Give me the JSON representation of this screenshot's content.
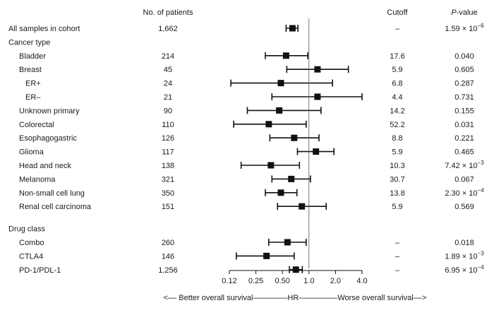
{
  "headers": {
    "patients": "No. of patients",
    "cutoff": "Cutoff",
    "pvalue_p": "P",
    "pvalue_rest": "-value"
  },
  "axis_caption": "<–– Better overall survival––––––––HR–––––––––Worse overall survival––>",
  "chart_data": {
    "type": "forest",
    "xscale": "log2",
    "xlim": [
      0.12,
      4.0
    ],
    "xticks": [
      "0.12",
      "0.25",
      "0.50",
      "1.0",
      "2.0",
      "4.0"
    ],
    "xtick_values": [
      0.125,
      0.25,
      0.5,
      1.0,
      2.0,
      4.0
    ],
    "reference_line": 1.0,
    "rows": [
      {
        "kind": "item",
        "indent": 0,
        "label": "All samples in cohort",
        "n": "1,662",
        "hr": 0.65,
        "lo": 0.55,
        "hi": 0.75,
        "cutoff": "–",
        "p_base": "1.59 × 10",
        "p_exp": "−6"
      },
      {
        "kind": "header",
        "label": "Cancer type"
      },
      {
        "kind": "item",
        "indent": 1,
        "label": "Bladder",
        "n": "214",
        "hr": 0.55,
        "lo": 0.32,
        "hi": 0.97,
        "cutoff": "17.6",
        "p_base": "0.040",
        "p_exp": ""
      },
      {
        "kind": "item",
        "indent": 1,
        "label": "Breast",
        "n": "45",
        "hr": 1.25,
        "lo": 0.56,
        "hi": 2.8,
        "cutoff": "5.9",
        "p_base": "0.605",
        "p_exp": ""
      },
      {
        "kind": "item",
        "indent": 2,
        "label": "ER+",
        "n": "24",
        "hr": 0.48,
        "lo": 0.13,
        "hi": 1.85,
        "cutoff": "6.8",
        "p_base": "0.287",
        "p_exp": ""
      },
      {
        "kind": "item",
        "indent": 2,
        "label": "ER–",
        "n": "21",
        "hr": 1.25,
        "lo": 0.38,
        "hi": 4.0,
        "cutoff": "4.4",
        "p_base": "0.731",
        "p_exp": ""
      },
      {
        "kind": "item",
        "indent": 1,
        "label": "Unknown primary",
        "n": "90",
        "hr": 0.46,
        "lo": 0.2,
        "hi": 1.37,
        "cutoff": "14.2",
        "p_base": "0.155",
        "p_exp": ""
      },
      {
        "kind": "item",
        "indent": 1,
        "label": "Colorectal",
        "n": "110",
        "hr": 0.35,
        "lo": 0.14,
        "hi": 0.93,
        "cutoff": "52.2",
        "p_base": "0.031",
        "p_exp": ""
      },
      {
        "kind": "item",
        "indent": 1,
        "label": "Esophagogastric",
        "n": "126",
        "hr": 0.68,
        "lo": 0.36,
        "hi": 1.3,
        "cutoff": "8.8",
        "p_base": "0.221",
        "p_exp": ""
      },
      {
        "kind": "item",
        "indent": 1,
        "label": "Glioma",
        "n": "117",
        "hr": 1.2,
        "lo": 0.74,
        "hi": 1.92,
        "cutoff": "5.9",
        "p_base": "0.465",
        "p_exp": ""
      },
      {
        "kind": "item",
        "indent": 1,
        "label": "Head and neck",
        "n": "138",
        "hr": 0.37,
        "lo": 0.17,
        "hi": 0.78,
        "cutoff": "10.3",
        "p_base": "7.42 × 10",
        "p_exp": "−3"
      },
      {
        "kind": "item",
        "indent": 1,
        "label": "Melanoma",
        "n": "321",
        "hr": 0.63,
        "lo": 0.38,
        "hi": 1.04,
        "cutoff": "30.7",
        "p_base": "0.067",
        "p_exp": ""
      },
      {
        "kind": "item",
        "indent": 1,
        "label": "Non-small cell lung",
        "n": "350",
        "hr": 0.48,
        "lo": 0.32,
        "hi": 0.73,
        "cutoff": "13.8",
        "p_base": "2.30 × 10",
        "p_exp": "−4"
      },
      {
        "kind": "item",
        "indent": 1,
        "label": "Renal cell carcinoma",
        "n": "151",
        "hr": 0.83,
        "lo": 0.44,
        "hi": 1.57,
        "cutoff": "5.9",
        "p_base": "0.569",
        "p_exp": ""
      },
      {
        "kind": "gap"
      },
      {
        "kind": "header",
        "label": "Drug class"
      },
      {
        "kind": "item",
        "indent": 1,
        "label": "Combo",
        "n": "260",
        "hr": 0.57,
        "lo": 0.35,
        "hi": 0.93,
        "cutoff": "–",
        "p_base": "0.018",
        "p_exp": ""
      },
      {
        "kind": "item",
        "indent": 1,
        "label": "CTLA4",
        "n": "146",
        "hr": 0.33,
        "lo": 0.15,
        "hi": 0.68,
        "cutoff": "–",
        "p_base": "1.89 × 10",
        "p_exp": "−3"
      },
      {
        "kind": "item",
        "indent": 1,
        "label": "PD-1/PDL-1",
        "n": "1,256",
        "hr": 0.71,
        "lo": 0.6,
        "hi": 0.84,
        "cutoff": "–",
        "p_base": "6.95 × 10",
        "p_exp": "−4"
      }
    ]
  }
}
